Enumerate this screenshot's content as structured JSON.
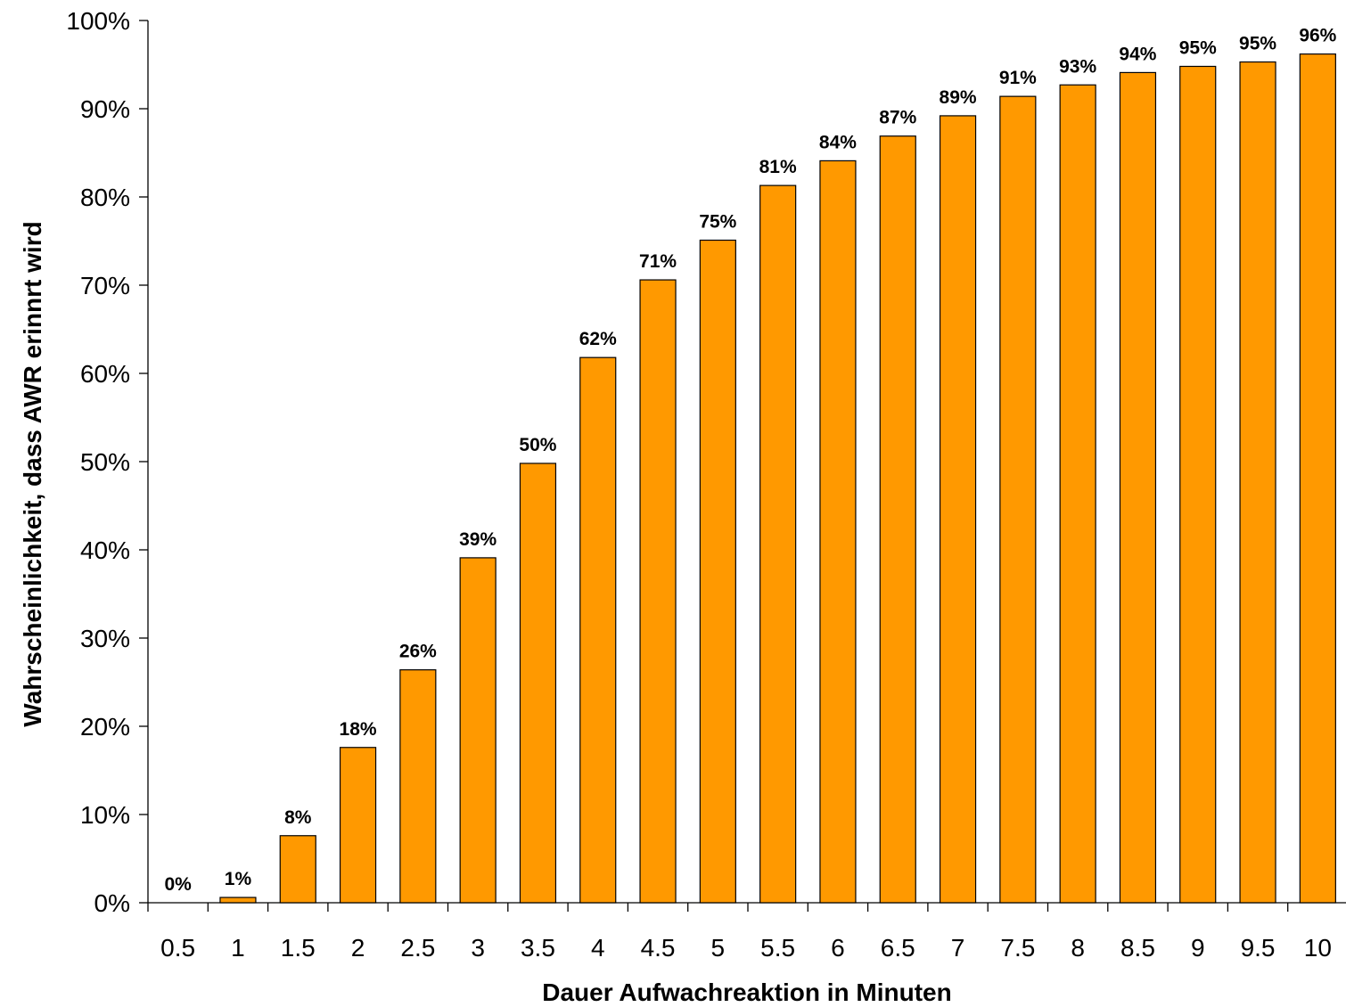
{
  "chart_data": {
    "type": "bar",
    "title": "",
    "xlabel": "Dauer Aufwachreaktion in Minuten",
    "ylabel": "Wahrscheinlichkeit, dass AWR erinnrt wird",
    "categories": [
      "0.5",
      "1",
      "1.5",
      "2",
      "2.5",
      "3",
      "3.5",
      "4",
      "4.5",
      "5",
      "5.5",
      "6",
      "6.5",
      "7",
      "7.5",
      "8",
      "8.5",
      "9",
      "9.5",
      "10"
    ],
    "values": [
      0,
      0.6,
      7.6,
      17.6,
      26.4,
      39.1,
      49.8,
      61.8,
      70.6,
      75.1,
      81.3,
      84.1,
      86.9,
      89.2,
      91.4,
      92.7,
      94.1,
      94.8,
      95.3,
      96.2
    ],
    "data_labels": [
      "0%",
      "1%",
      "8%",
      "18%",
      "26%",
      "39%",
      "50%",
      "62%",
      "71%",
      "75%",
      "81%",
      "84%",
      "87%",
      "89%",
      "91%",
      "93%",
      "94%",
      "95%",
      "95%",
      "96%"
    ],
    "y_ticks": [
      "0%",
      "10%",
      "20%",
      "30%",
      "40%",
      "50%",
      "60%",
      "70%",
      "80%",
      "90%",
      "100%"
    ],
    "ylim": [
      0,
      100
    ],
    "grid": false,
    "legend": "none",
    "bar_color": "#FF9900",
    "bar_edge_color": "#000000"
  }
}
